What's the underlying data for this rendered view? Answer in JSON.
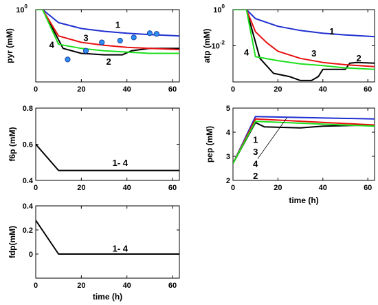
{
  "chart_data": [
    {
      "id": "pyr",
      "type": "line",
      "ylabel": "pyr (mM)",
      "xlabel": "",
      "xlim": [
        0,
        63
      ],
      "ylim": [
        0.07,
        1
      ],
      "yscale": "log",
      "xticks": [
        0,
        20,
        40,
        60
      ],
      "yticks": [
        {
          "v": 1,
          "label": "10",
          "sup": "0"
        }
      ],
      "series": [
        {
          "id": "1",
          "color": "#1f2fd0",
          "x": [
            0,
            3,
            10,
            20,
            30,
            40,
            50,
            63
          ],
          "y": [
            1.0,
            1.0,
            0.62,
            0.5,
            0.45,
            0.42,
            0.4,
            0.38
          ]
        },
        {
          "id": "2",
          "color": "#000000",
          "x": [
            0,
            3,
            12,
            20,
            30,
            38,
            42,
            50,
            63
          ],
          "y": [
            1.0,
            1.0,
            0.24,
            0.2,
            0.19,
            0.19,
            0.22,
            0.24,
            0.24
          ]
        },
        {
          "id": "3",
          "color": "#e81010",
          "x": [
            0,
            3,
            10,
            20,
            30,
            40,
            50,
            63
          ],
          "y": [
            1.0,
            1.0,
            0.38,
            0.3,
            0.27,
            0.25,
            0.24,
            0.23
          ]
        },
        {
          "id": "4",
          "color": "#1ee01e",
          "x": [
            0,
            3,
            10,
            20,
            30,
            40,
            50,
            63
          ],
          "y": [
            1.0,
            1.0,
            0.28,
            0.24,
            0.22,
            0.21,
            0.2,
            0.2
          ]
        }
      ],
      "markers": {
        "x": [
          14,
          22,
          29,
          37,
          43,
          50,
          53
        ],
        "y": [
          0.16,
          0.22,
          0.3,
          0.32,
          0.36,
          0.42,
          0.41
        ],
        "color": "#2e8ff0"
      },
      "annotations": [
        {
          "text": "1",
          "x": 36,
          "y": 0.58
        },
        {
          "text": "2",
          "x": 32,
          "y": 0.15
        },
        {
          "text": "3",
          "x": 22,
          "y": 0.36
        },
        {
          "text": "4",
          "x": 7,
          "y": 0.28
        }
      ]
    },
    {
      "id": "atp",
      "type": "line",
      "ylabel": "atp (mM)",
      "xlabel": "",
      "xlim": [
        0,
        63
      ],
      "ylim": [
        0.0001,
        1
      ],
      "yscale": "log",
      "xticks": [
        0,
        20,
        40,
        60
      ],
      "yticks": [
        {
          "v": 1,
          "label": "10",
          "sup": "0"
        },
        {
          "v": 0.01,
          "label": "10",
          "sup": "-2"
        }
      ],
      "series": [
        {
          "id": "1",
          "color": "#1f2fd0",
          "x": [
            0,
            6,
            10,
            20,
            30,
            40,
            50,
            63
          ],
          "y": [
            1.0,
            1.0,
            0.32,
            0.12,
            0.07,
            0.05,
            0.04,
            0.032
          ]
        },
        {
          "id": "2",
          "color": "#000000",
          "x": [
            0,
            6,
            12,
            18,
            25,
            30,
            35,
            38,
            40,
            45,
            50,
            52,
            55,
            63
          ],
          "y": [
            1.0,
            1.0,
            0.002,
            0.0003,
            0.0002,
            0.00012,
            0.00012,
            0.0002,
            0.0005,
            0.0005,
            0.0005,
            0.0011,
            0.0012,
            0.0011
          ]
        },
        {
          "id": "3",
          "color": "#e81010",
          "x": [
            0,
            6,
            10,
            15,
            20,
            30,
            40,
            50,
            63
          ],
          "y": [
            1.0,
            1.0,
            0.06,
            0.015,
            0.005,
            0.002,
            0.0012,
            0.0009,
            0.0007
          ]
        },
        {
          "id": "4",
          "color": "#1ee01e",
          "x": [
            0,
            6,
            10,
            20,
            30,
            40,
            50,
            63
          ],
          "y": [
            1.0,
            1.0,
            0.0025,
            0.0015,
            0.001,
            0.0008,
            0.0006,
            0.0005
          ]
        }
      ],
      "annotations": [
        {
          "text": "1",
          "x": 44,
          "y": 0.065
        },
        {
          "text": "2",
          "x": 56,
          "y": 0.0022
        },
        {
          "text": "3",
          "x": 36,
          "y": 0.004
        },
        {
          "text": "4",
          "x": 6,
          "y": 0.0045
        }
      ]
    },
    {
      "id": "f6p",
      "type": "line",
      "ylabel": "f6p (mM)",
      "xlabel": "",
      "xlim": [
        0,
        63
      ],
      "ylim": [
        0.4,
        0.8
      ],
      "yscale": "linear",
      "xticks": [
        0,
        20,
        40,
        60
      ],
      "yticks": [
        {
          "v": 0.4,
          "label": "0.4"
        },
        {
          "v": 0.6,
          "label": "0.6"
        },
        {
          "v": 0.8,
          "label": "0.8"
        }
      ],
      "series": [
        {
          "id": "1-4",
          "color": "#000000",
          "x": [
            0,
            10,
            63
          ],
          "y": [
            0.6,
            0.455,
            0.455
          ]
        }
      ],
      "annotations": [
        {
          "text": "1- 4",
          "x": 37,
          "y": 0.5
        }
      ]
    },
    {
      "id": "pep",
      "type": "line",
      "ylabel": "pep (mM)",
      "xlabel": "time (h)",
      "xlim": [
        0,
        63
      ],
      "ylim": [
        2,
        5
      ],
      "yscale": "linear",
      "xticks": [
        0,
        20,
        40,
        60
      ],
      "yticks": [
        {
          "v": 2,
          "label": "2"
        },
        {
          "v": 3,
          "label": "3"
        },
        {
          "v": 4,
          "label": "4"
        },
        {
          "v": 5,
          "label": "5"
        }
      ],
      "series": [
        {
          "id": "1",
          "color": "#1f2fd0",
          "x": [
            0,
            10,
            63
          ],
          "y": [
            2.7,
            4.65,
            4.55
          ]
        },
        {
          "id": "2",
          "color": "#000000",
          "x": [
            0,
            10,
            14,
            30,
            40,
            63
          ],
          "y": [
            2.7,
            4.4,
            4.22,
            4.18,
            4.25,
            4.3
          ]
        },
        {
          "id": "3",
          "color": "#e81010",
          "x": [
            0,
            10,
            63
          ],
          "y": [
            2.7,
            4.55,
            4.3
          ]
        },
        {
          "id": "4",
          "color": "#1ee01e",
          "x": [
            0,
            10,
            63
          ],
          "y": [
            2.7,
            4.45,
            4.25
          ]
        }
      ],
      "annotations": [
        {
          "text": "1",
          "x": 10,
          "y": 3.7
        },
        {
          "text": "3",
          "x": 10,
          "y": 3.2
        },
        {
          "text": "4",
          "x": 10,
          "y": 2.7
        },
        {
          "text": "2",
          "x": 10,
          "y": 2.2
        }
      ],
      "pointer": {
        "x1": 11,
        "y1": 2.9,
        "x2": 24,
        "y2": 4.6
      }
    },
    {
      "id": "fdp",
      "type": "line",
      "ylabel": "fdp(mM)",
      "xlabel": "time (h)",
      "xlim": [
        0,
        63
      ],
      "ylim": [
        -0.2,
        0.4
      ],
      "yscale": "linear",
      "xticks": [
        0,
        20,
        40,
        60
      ],
      "yticks": [
        {
          "v": 0,
          "label": "0"
        },
        {
          "v": 0.2,
          "label": "0.2"
        },
        {
          "v": 0.4,
          "label": "0.4"
        }
      ],
      "series": [
        {
          "id": "1-4",
          "color": "#000000",
          "x": [
            0,
            10,
            63
          ],
          "y": [
            0.28,
            0.0,
            0.0
          ]
        }
      ],
      "annotations": [
        {
          "text": "1- 4",
          "x": 37,
          "y": 0.05
        }
      ]
    }
  ]
}
